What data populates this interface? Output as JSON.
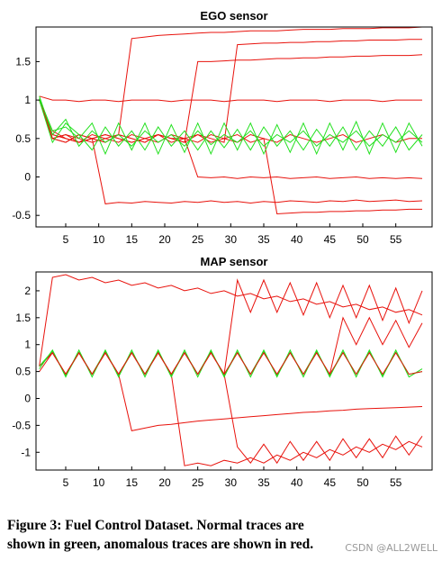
{
  "chart_data": [
    {
      "type": "line",
      "title": "EGO sensor",
      "x": [
        1,
        3,
        5,
        7,
        9,
        11,
        13,
        15,
        17,
        19,
        21,
        23,
        25,
        27,
        29,
        31,
        33,
        35,
        37,
        39,
        41,
        43,
        45,
        47,
        49,
        51,
        53,
        55,
        57,
        59
      ],
      "xlim": [
        0.5,
        60.5
      ],
      "xticks": [
        5,
        10,
        15,
        20,
        25,
        30,
        35,
        40,
        45,
        50,
        55
      ],
      "ylim": [
        -0.65,
        1.95
      ],
      "yticks": [
        -0.5,
        0,
        0.5,
        1,
        1.5
      ],
      "series": [
        {
          "color": "#e8120c",
          "values": [
            1.0,
            0.6,
            0.5,
            0.45,
            0.55,
            0.5,
            0.45,
            0.55,
            0.5,
            0.45,
            0.55,
            0.5,
            0.45,
            0.55,
            0.5,
            0.45,
            0.55,
            0.5,
            0.45,
            0.55,
            0.5,
            0.45,
            0.5,
            0.55,
            0.45,
            0.5,
            0.55,
            0.45,
            0.5,
            0.5
          ]
        },
        {
          "color": "#e8120c",
          "values": [
            1.05,
            1.0,
            1.0,
            0.98,
            1.0,
            1.0,
            0.98,
            1.0,
            1.0,
            1.0,
            0.98,
            1.0,
            1.0,
            1.0,
            0.98,
            1.0,
            1.0,
            1.0,
            0.98,
            1.0,
            1.0,
            1.0,
            0.98,
            1.0,
            1.0,
            1.0,
            0.98,
            1.0,
            1.0,
            1.0
          ]
        },
        {
          "color": "#e8120c",
          "values": [
            1.0,
            0.5,
            0.55,
            0.5,
            0.45,
            0.5,
            0.55,
            1.8,
            1.82,
            1.84,
            1.85,
            1.86,
            1.87,
            1.88,
            1.88,
            1.89,
            1.9,
            1.9,
            1.9,
            1.91,
            1.92,
            1.92,
            1.92,
            1.93,
            1.93,
            1.93,
            1.94,
            1.94,
            1.94,
            1.95
          ]
        },
        {
          "color": "#e8120c",
          "values": [
            1.0,
            0.55,
            0.5,
            0.45,
            0.5,
            0.55,
            0.5,
            0.45,
            0.5,
            0.55,
            0.5,
            0.45,
            1.5,
            1.5,
            1.51,
            1.52,
            1.52,
            1.53,
            1.54,
            1.54,
            1.55,
            1.55,
            1.56,
            1.56,
            1.57,
            1.57,
            1.58,
            1.58,
            1.58,
            1.59
          ]
        },
        {
          "color": "#e8120c",
          "values": [
            1.0,
            0.5,
            0.45,
            0.55,
            0.5,
            0.45,
            0.55,
            0.5,
            0.45,
            0.55,
            0.5,
            0.5,
            0.0,
            -0.01,
            0.0,
            -0.02,
            0.0,
            -0.01,
            0.0,
            -0.02,
            -0.01,
            0.0,
            -0.02,
            -0.01,
            0.0,
            -0.02,
            -0.01,
            -0.02,
            -0.01,
            -0.02
          ]
        },
        {
          "color": "#e8120c",
          "values": [
            1.0,
            0.55,
            0.5,
            0.45,
            0.5,
            -0.35,
            -0.33,
            -0.34,
            -0.32,
            -0.33,
            -0.34,
            -0.32,
            -0.33,
            -0.31,
            -0.33,
            -0.32,
            -0.34,
            -0.32,
            -0.33,
            -0.31,
            -0.32,
            -0.33,
            -0.31,
            -0.32,
            -0.3,
            -0.32,
            -0.31,
            -0.3,
            -0.32,
            -0.31
          ]
        },
        {
          "color": "#e8120c",
          "values": [
            1.0,
            0.5,
            0.55,
            0.45,
            0.5,
            0.55,
            0.5,
            0.45,
            0.5,
            0.55,
            0.45,
            0.5,
            0.55,
            0.45,
            0.5,
            0.55,
            0.45,
            0.5,
            -0.48,
            -0.47,
            -0.46,
            -0.46,
            -0.45,
            -0.45,
            -0.44,
            -0.44,
            -0.43,
            -0.43,
            -0.42,
            -0.42
          ]
        },
        {
          "color": "#e8120c",
          "values": [
            1.0,
            0.5,
            0.45,
            0.55,
            0.5,
            0.45,
            0.55,
            0.5,
            0.45,
            0.55,
            0.5,
            0.45,
            0.55,
            0.5,
            0.45,
            1.72,
            1.73,
            1.74,
            1.74,
            1.75,
            1.75,
            1.76,
            1.76,
            1.77,
            1.77,
            1.78,
            1.78,
            1.78,
            1.79,
            1.79
          ]
        },
        {
          "color": "#22e01e",
          "values": [
            1.05,
            0.55,
            0.75,
            0.4,
            0.6,
            0.45,
            0.55,
            0.4,
            0.6,
            0.45,
            0.55,
            0.4,
            0.6,
            0.42,
            0.55,
            0.45,
            0.6,
            0.4,
            0.55,
            0.45,
            0.6,
            0.4,
            0.55,
            0.45,
            0.6,
            0.4,
            0.55,
            0.45,
            0.6,
            0.45
          ]
        },
        {
          "color": "#22e01e",
          "values": [
            1.0,
            0.45,
            0.7,
            0.55,
            0.35,
            0.65,
            0.4,
            0.6,
            0.35,
            0.65,
            0.4,
            0.6,
            0.35,
            0.6,
            0.38,
            0.62,
            0.35,
            0.65,
            0.4,
            0.6,
            0.35,
            0.62,
            0.4,
            0.65,
            0.35,
            0.6,
            0.4,
            0.65,
            0.35,
            0.55
          ]
        },
        {
          "color": "#22e01e",
          "values": [
            1.02,
            0.6,
            0.65,
            0.5,
            0.7,
            0.3,
            0.7,
            0.35,
            0.7,
            0.3,
            0.68,
            0.32,
            0.7,
            0.3,
            0.7,
            0.35,
            0.7,
            0.3,
            0.68,
            0.32,
            0.7,
            0.3,
            0.7,
            0.35,
            0.72,
            0.3,
            0.7,
            0.32,
            0.7,
            0.4
          ]
        }
      ]
    },
    {
      "type": "line",
      "title": "MAP sensor",
      "x": [
        1,
        3,
        5,
        7,
        9,
        11,
        13,
        15,
        17,
        19,
        21,
        23,
        25,
        27,
        29,
        31,
        33,
        35,
        37,
        39,
        41,
        43,
        45,
        47,
        49,
        51,
        53,
        55,
        57,
        59
      ],
      "xlim": [
        0.5,
        60.5
      ],
      "xticks": [
        5,
        10,
        15,
        20,
        25,
        30,
        35,
        40,
        45,
        50,
        55
      ],
      "ylim": [
        -1.33,
        2.35
      ],
      "yticks": [
        -1,
        -0.5,
        0,
        0.5,
        1,
        1.5,
        2
      ],
      "series": [
        {
          "color": "#e8120c",
          "values": [
            0.6,
            2.25,
            2.3,
            2.2,
            2.25,
            2.15,
            2.2,
            2.1,
            2.15,
            2.05,
            2.1,
            2.0,
            2.05,
            1.95,
            2.0,
            1.9,
            1.95,
            1.85,
            1.9,
            1.8,
            1.85,
            1.75,
            1.8,
            1.7,
            1.75,
            1.65,
            1.7,
            1.6,
            1.65,
            1.55
          ]
        },
        {
          "color": "#e8120c",
          "values": [
            0.6,
            0.85,
            0.45,
            0.85,
            0.45,
            0.85,
            0.45,
            -0.6,
            -0.55,
            -0.5,
            -0.48,
            -0.45,
            -0.42,
            -0.4,
            -0.38,
            -0.36,
            -0.34,
            -0.32,
            -0.3,
            -0.28,
            -0.26,
            -0.25,
            -0.23,
            -0.22,
            -0.2,
            -0.19,
            -0.18,
            -0.17,
            -0.16,
            -0.15
          ]
        },
        {
          "color": "#e8120c",
          "values": [
            0.6,
            0.85,
            0.45,
            0.85,
            0.45,
            0.85,
            0.45,
            0.85,
            0.45,
            0.85,
            0.45,
            -1.25,
            -1.2,
            -1.25,
            -1.15,
            -1.2,
            -1.1,
            -1.2,
            -1.05,
            -1.15,
            -1.0,
            -1.1,
            -0.95,
            -1.05,
            -0.9,
            -1.0,
            -0.85,
            -0.95,
            -0.8,
            -0.9
          ]
        },
        {
          "color": "#e8120c",
          "values": [
            0.6,
            0.85,
            0.45,
            0.85,
            0.45,
            0.85,
            0.45,
            0.85,
            0.45,
            0.85,
            0.45,
            0.85,
            0.45,
            0.85,
            0.45,
            2.2,
            1.6,
            2.2,
            1.6,
            2.15,
            1.55,
            2.15,
            1.5,
            2.1,
            1.5,
            2.1,
            1.45,
            2.05,
            1.4,
            2.0
          ]
        },
        {
          "color": "#e8120c",
          "values": [
            0.6,
            0.85,
            0.45,
            0.85,
            0.45,
            0.85,
            0.45,
            0.85,
            0.45,
            0.85,
            0.45,
            0.85,
            0.45,
            0.85,
            0.45,
            0.85,
            0.45,
            0.85,
            0.45,
            0.85,
            0.45,
            0.85,
            0.45,
            1.5,
            1.0,
            1.5,
            1.0,
            1.45,
            0.95,
            1.4
          ]
        },
        {
          "color": "#e8120c",
          "values": [
            0.6,
            0.85,
            0.45,
            0.85,
            0.45,
            0.85,
            0.45,
            0.85,
            0.45,
            0.85,
            0.45,
            0.85,
            0.45,
            0.85,
            0.45,
            -0.9,
            -1.2,
            -0.85,
            -1.2,
            -0.8,
            -1.15,
            -0.8,
            -1.15,
            -0.75,
            -1.1,
            -0.75,
            -1.1,
            -0.7,
            -1.05,
            -0.7
          ]
        },
        {
          "color": "#22e01e",
          "values": [
            0.55,
            0.9,
            0.4,
            0.9,
            0.4,
            0.9,
            0.4,
            0.9,
            0.4,
            0.9,
            0.4,
            0.9,
            0.4,
            0.9,
            0.4,
            0.9,
            0.4,
            0.9,
            0.4,
            0.9,
            0.4,
            0.9,
            0.4,
            0.9,
            0.4,
            0.9,
            0.4,
            0.9,
            0.4,
            0.55
          ]
        },
        {
          "color": "#22e01e",
          "values": [
            0.6,
            0.88,
            0.42,
            0.86,
            0.45,
            0.88,
            0.42,
            0.86,
            0.45,
            0.88,
            0.42,
            0.86,
            0.45,
            0.88,
            0.42,
            0.86,
            0.45,
            0.88,
            0.42,
            0.86,
            0.45,
            0.88,
            0.42,
            0.86,
            0.45,
            0.88,
            0.42,
            0.86,
            0.45,
            0.5
          ]
        },
        {
          "color": "#e8120c",
          "values": [
            0.5,
            0.85,
            0.45,
            0.85,
            0.45,
            0.85,
            0.45,
            0.85,
            0.45,
            0.85,
            0.45,
            0.85,
            0.45,
            0.85,
            0.45,
            0.85,
            0.45,
            0.85,
            0.45,
            0.85,
            0.45,
            0.85,
            0.45,
            0.85,
            0.45,
            0.85,
            0.45,
            0.85,
            0.45,
            0.5
          ]
        }
      ]
    }
  ],
  "caption": {
    "line1": "Figure 3: Fuel Control Dataset. Normal traces are",
    "line2": "shown in green, anomalous traces are shown in red."
  },
  "watermark": "CSDN @ALL2WELL"
}
